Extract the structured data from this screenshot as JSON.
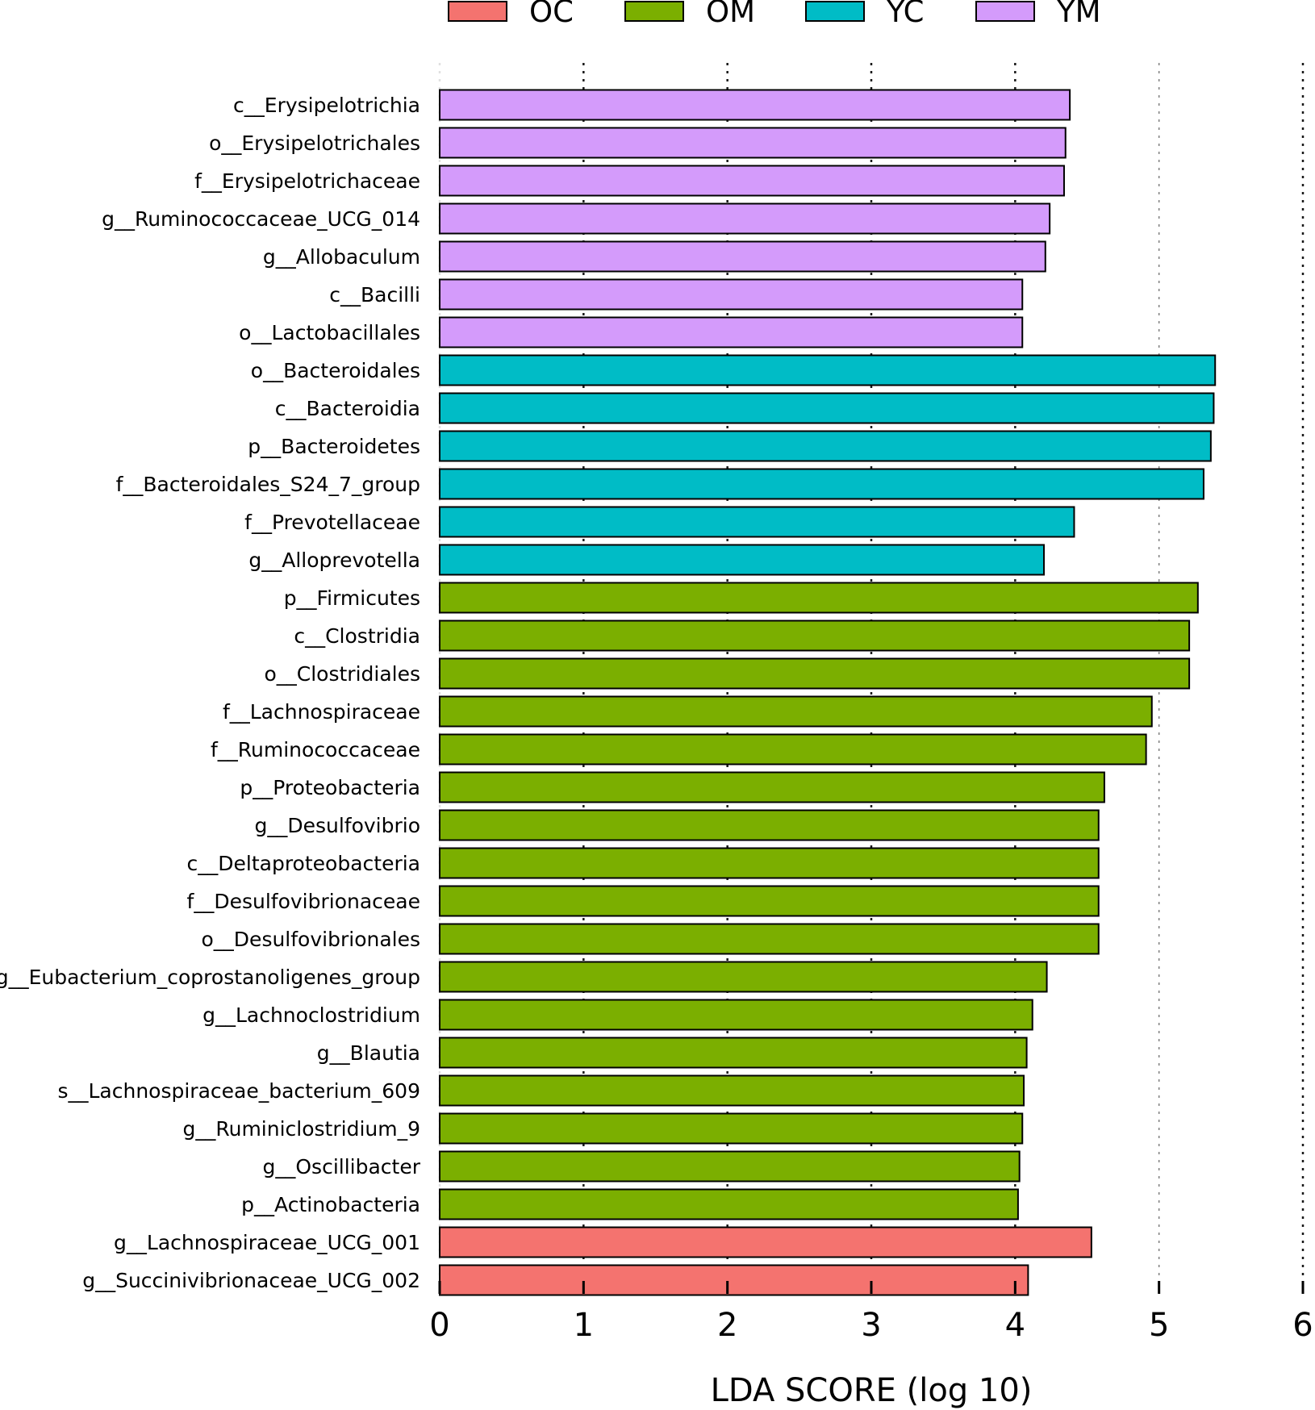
{
  "chart_data": {
    "type": "bar",
    "orientation": "horizontal",
    "title": "",
    "xlabel": "LDA SCORE (log 10)",
    "ylabel": "",
    "xlim": [
      0,
      6
    ],
    "xticks": [
      0,
      1,
      2,
      3,
      4,
      5,
      6
    ],
    "grid": "vertical dotted at each tick",
    "legend_position": "top",
    "legend": [
      {
        "name": "OC",
        "color": "#F4736F"
      },
      {
        "name": "OM",
        "color": "#7BAF00"
      },
      {
        "name": "YC",
        "color": "#00BCC6"
      },
      {
        "name": "YM",
        "color": "#D49BFB"
      }
    ],
    "bars": [
      {
        "label": "c__Erysipelotrichia",
        "value": 4.38,
        "group": "YM"
      },
      {
        "label": "o__Erysipelotrichales",
        "value": 4.35,
        "group": "YM"
      },
      {
        "label": "f__Erysipelotrichaceae",
        "value": 4.34,
        "group": "YM"
      },
      {
        "label": "g__Ruminococcaceae_UCG_014",
        "value": 4.24,
        "group": "YM"
      },
      {
        "label": "g__Allobaculum",
        "value": 4.21,
        "group": "YM"
      },
      {
        "label": "c__Bacilli",
        "value": 4.05,
        "group": "YM"
      },
      {
        "label": "o__Lactobacillales",
        "value": 4.05,
        "group": "YM"
      },
      {
        "label": "o__Bacteroidales",
        "value": 5.39,
        "group": "YC"
      },
      {
        "label": "c__Bacteroidia",
        "value": 5.38,
        "group": "YC"
      },
      {
        "label": "p__Bacteroidetes",
        "value": 5.36,
        "group": "YC"
      },
      {
        "label": "f__Bacteroidales_S24_7_group",
        "value": 5.31,
        "group": "YC"
      },
      {
        "label": "f__Prevotellaceae",
        "value": 4.41,
        "group": "YC"
      },
      {
        "label": "g__Alloprevotella",
        "value": 4.2,
        "group": "YC"
      },
      {
        "label": "p__Firmicutes",
        "value": 5.27,
        "group": "OM"
      },
      {
        "label": "c__Clostridia",
        "value": 5.21,
        "group": "OM"
      },
      {
        "label": "o__Clostridiales",
        "value": 5.21,
        "group": "OM"
      },
      {
        "label": "f__Lachnospiraceae",
        "value": 4.95,
        "group": "OM"
      },
      {
        "label": "f__Ruminococcaceae",
        "value": 4.91,
        "group": "OM"
      },
      {
        "label": "p__Proteobacteria",
        "value": 4.62,
        "group": "OM"
      },
      {
        "label": "g__Desulfovibrio",
        "value": 4.58,
        "group": "OM"
      },
      {
        "label": "c__Deltaproteobacteria",
        "value": 4.58,
        "group": "OM"
      },
      {
        "label": "f__Desulfovibrionaceae",
        "value": 4.58,
        "group": "OM"
      },
      {
        "label": "o__Desulfovibrionales",
        "value": 4.58,
        "group": "OM"
      },
      {
        "label": "g__Eubacterium_coprostanoligenes_group",
        "value": 4.22,
        "group": "OM"
      },
      {
        "label": "g__Lachnoclostridium",
        "value": 4.12,
        "group": "OM"
      },
      {
        "label": "g__Blautia",
        "value": 4.08,
        "group": "OM"
      },
      {
        "label": "s__Lachnospiraceae_bacterium_609",
        "value": 4.06,
        "group": "OM"
      },
      {
        "label": "g__Ruminiclostridium_9",
        "value": 4.05,
        "group": "OM"
      },
      {
        "label": "g__Oscillibacter",
        "value": 4.03,
        "group": "OM"
      },
      {
        "label": "p__Actinobacteria",
        "value": 4.02,
        "group": "OM"
      },
      {
        "label": "g__Lachnospiraceae_UCG_001",
        "value": 4.53,
        "group": "OC"
      },
      {
        "label": "g__Succinivibrionaceae_UCG_002",
        "value": 4.09,
        "group": "OC"
      }
    ]
  }
}
